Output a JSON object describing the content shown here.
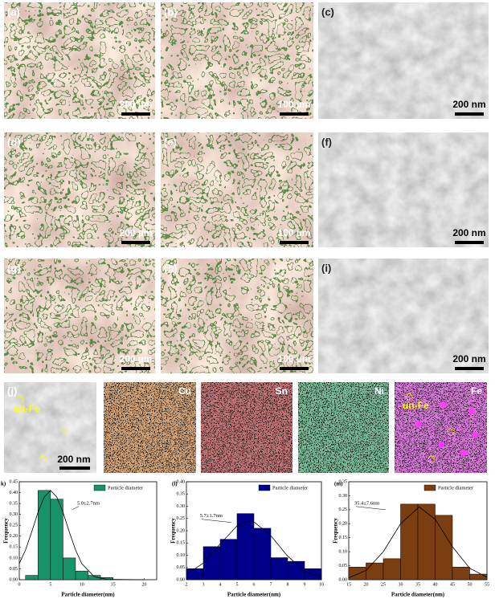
{
  "panels": [
    {
      "label": "(a)",
      "scale": "200 µm"
    },
    {
      "label": "(b)",
      "scale": "100 µm"
    },
    {
      "label": "(c)",
      "scale": "200 nm"
    },
    {
      "label": "(d)",
      "scale": "200 µm"
    },
    {
      "label": "(e)",
      "scale": "100 µm"
    },
    {
      "label": "(f)",
      "scale": "200 nm"
    },
    {
      "label": "(g)",
      "scale": "200 µm"
    },
    {
      "label": "(h)",
      "scale": "100 µm"
    },
    {
      "label": "(i)",
      "scale": "200 nm"
    }
  ],
  "eds": {
    "label": "(j)",
    "note": "un-Fe",
    "scale": "200 nm",
    "maps": [
      "Cu",
      "Sn",
      "Ni",
      "Fe"
    ],
    "fe_note": "un-Fe"
  },
  "chart_data": [
    {
      "type": "histogram",
      "label": "k)",
      "xlabel": "Particle diameter(nm)",
      "ylabel": "Frequency",
      "annotation": "5.0±2.7nm",
      "bins": [
        1,
        3,
        5,
        7,
        9,
        11,
        13,
        15
      ],
      "series": [
        {
          "name": "Particle diameter",
          "color": "#17936a",
          "values": [
            0.02,
            0.41,
            0.37,
            0.1,
            0.04,
            0.02,
            0.01
          ]
        }
      ],
      "fit": {
        "x": [
          0,
          1,
          2,
          3,
          4,
          5,
          6,
          7,
          8,
          9,
          10,
          12,
          14,
          20
        ],
        "y": [
          0.074,
          0.137,
          0.22,
          0.31,
          0.38,
          0.41,
          0.38,
          0.31,
          0.22,
          0.137,
          0.074,
          0.014,
          0.002,
          0
        ]
      },
      "xlim": [
        0,
        22
      ],
      "xticks": [
        0,
        5,
        10,
        15,
        20
      ],
      "ylim": [
        0,
        0.45
      ],
      "yticks": [
        {
          "value": 0,
          "label": "0.00"
        },
        {
          "value": 0.05,
          "label": "0.05"
        },
        {
          "value": 0.1,
          "label": "0.10"
        },
        {
          "value": 0.15,
          "label": "0.15"
        },
        {
          "value": 0.2,
          "label": "0.20"
        },
        {
          "value": 0.25,
          "label": "0.25"
        },
        {
          "value": 0.3,
          "label": "0.30"
        },
        {
          "value": 0.35,
          "label": "0.35"
        },
        {
          "value": 0.4,
          "label": "0.40"
        },
        {
          "value": 0.45,
          "label": "0.45"
        }
      ]
    },
    {
      "type": "histogram",
      "label": "(l)",
      "xlabel": "Particle diameter(nm)",
      "ylabel": "Frequency",
      "annotation": "5.7±1.7nm",
      "bins": [
        2,
        3,
        4,
        5,
        6,
        7,
        8,
        9,
        10
      ],
      "series": [
        {
          "name": "Particle diameter",
          "color": "#00008b",
          "values": [
            0.045,
            0.135,
            0.165,
            0.27,
            0.21,
            0.09,
            0.075,
            0.045
          ]
        }
      ],
      "fit": {
        "x": [
          2,
          3,
          4,
          5,
          5.7,
          6,
          7,
          8,
          9,
          10
        ],
        "y": [
          0.022,
          0.068,
          0.146,
          0.22,
          0.24,
          0.236,
          0.18,
          0.096,
          0.036,
          0.01
        ]
      },
      "xlim": [
        2,
        10
      ],
      "xticks": [
        2,
        3,
        4,
        5,
        6,
        7,
        8,
        9,
        10
      ],
      "ylim": [
        0,
        0.4
      ],
      "yticks": [
        {
          "value": 0,
          "label": "0.00"
        },
        {
          "value": 0.05,
          "label": "0.05"
        },
        {
          "value": 0.1,
          "label": "0.10"
        },
        {
          "value": 0.15,
          "label": "0.15"
        },
        {
          "value": 0.2,
          "label": "0.20"
        },
        {
          "value": 0.25,
          "label": "0.25"
        },
        {
          "value": 0.3,
          "label": "0.30"
        },
        {
          "value": 0.35,
          "label": "0.35"
        },
        {
          "value": 0.4,
          "label": "0.40"
        }
      ]
    },
    {
      "type": "histogram",
      "label": "(m)",
      "xlabel": "Particle diameter(nm)",
      "ylabel": "Frequency",
      "annotation": "35.4±7.6nm",
      "bins": [
        15,
        20,
        25,
        30,
        35,
        40,
        45,
        50,
        55
      ],
      "series": [
        {
          "name": "Particle diameter",
          "color": "#7a3e10",
          "values": [
            0.045,
            0.06,
            0.075,
            0.27,
            0.27,
            0.23,
            0.045,
            0.02
          ]
        }
      ],
      "fit": {
        "x": [
          15,
          20,
          25,
          30,
          35.4,
          40,
          45,
          50,
          55
        ],
        "y": [
          0.007,
          0.033,
          0.1,
          0.2,
          0.26,
          0.216,
          0.118,
          0.041,
          0.009
        ]
      },
      "xlim": [
        15,
        55
      ],
      "xticks": [
        15,
        20,
        25,
        30,
        35,
        40,
        45,
        50,
        55
      ],
      "ylim": [
        0,
        0.35
      ],
      "yticks": [
        {
          "value": 0,
          "label": "0.00"
        },
        {
          "value": 0.05,
          "label": "0.05"
        },
        {
          "value": 0.1,
          "label": "0.10"
        },
        {
          "value": 0.15,
          "label": "0.15"
        },
        {
          "value": 0.2,
          "label": "0.20"
        },
        {
          "value": 0.25,
          "label": "0.25"
        },
        {
          "value": 0.3,
          "label": "0.30"
        },
        {
          "value": 0.35,
          "label": "0.35"
        }
      ]
    }
  ]
}
